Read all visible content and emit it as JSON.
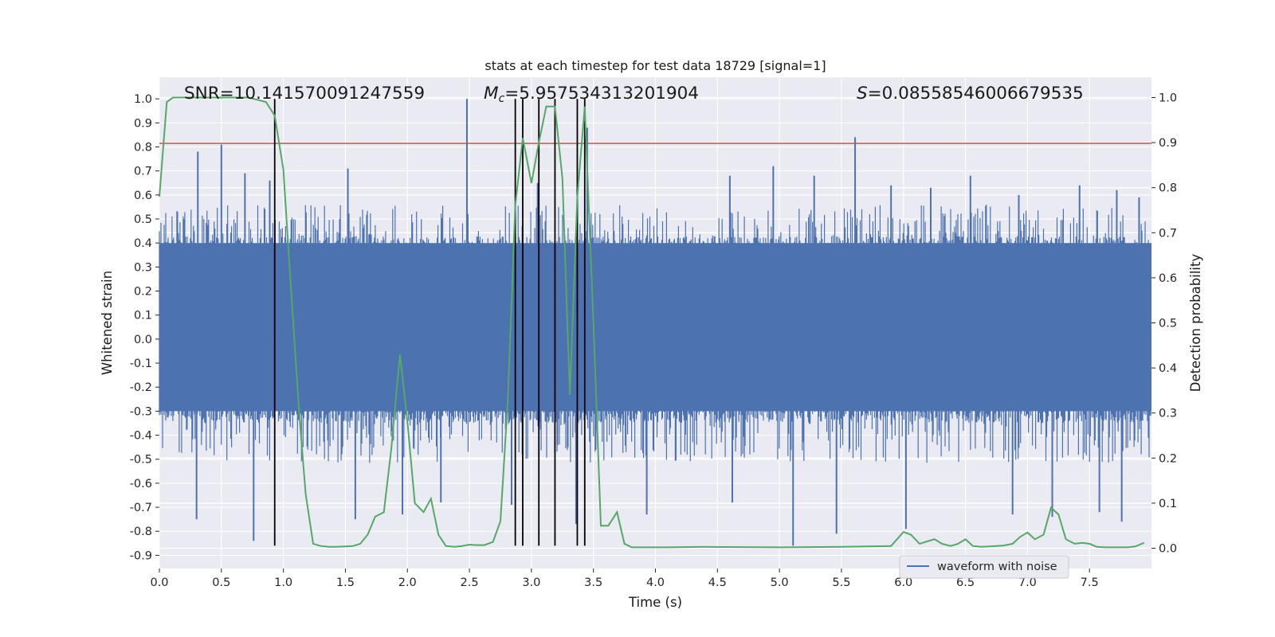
{
  "chart_data": {
    "type": "line",
    "title": "stats at each timestep for test data 18729 [signal=1]",
    "xlabel": "Time (s)",
    "ylabel": "Whitened strain",
    "y2label": "Detection probability",
    "xlim": [
      0.0,
      8.0
    ],
    "ylim": [
      -0.955,
      1.09
    ],
    "y2lim": [
      -0.045,
      1.045
    ],
    "xticks": [
      "0.0",
      "0.5",
      "1.0",
      "1.5",
      "2.0",
      "2.5",
      "3.0",
      "3.5",
      "4.0",
      "4.5",
      "5.0",
      "5.5",
      "6.0",
      "6.5",
      "7.0",
      "7.5"
    ],
    "xtick_values": [
      0,
      0.5,
      1,
      1.5,
      2,
      2.5,
      3,
      3.5,
      4,
      4.5,
      5,
      5.5,
      6,
      6.5,
      7,
      7.5
    ],
    "yticks": [
      "1.0",
      "0.9",
      "0.8",
      "0.7",
      "0.6",
      "0.5",
      "0.4",
      "0.3",
      "0.2",
      "0.1",
      "0.0",
      "-0.1",
      "-0.2",
      "-0.3",
      "-0.4",
      "-0.5",
      "-0.6",
      "-0.7",
      "-0.8",
      "-0.9"
    ],
    "ytick_values": [
      1.0,
      0.9,
      0.8,
      0.7,
      0.6,
      0.5,
      0.4,
      0.3,
      0.2,
      0.1,
      0.0,
      -0.1,
      -0.2,
      -0.3,
      -0.4,
      -0.5,
      -0.6,
      -0.7,
      -0.8,
      -0.9
    ],
    "y2ticks": [
      "1.0",
      "0.9",
      "0.8",
      "0.7",
      "0.6",
      "0.5",
      "0.4",
      "0.3",
      "0.2",
      "0.1",
      "0.0"
    ],
    "y2tick_values": [
      1.0,
      0.9,
      0.8,
      0.7,
      0.6,
      0.5,
      0.4,
      0.3,
      0.2,
      0.1,
      0.0
    ],
    "grid": true,
    "background": "#EAEAF2",
    "legend": {
      "label": "waveform with noise",
      "position": "lower-right"
    },
    "annotations": {
      "snr": "SNR=10.141570091247559",
      "mc_symbol": "M",
      "mc_sub": "c",
      "mc_value": "=5.957534313201904",
      "s_symbol": "S",
      "s_value": "=0.08558546006679535"
    },
    "threshold": {
      "value": 0.815,
      "color": "#C44E52"
    },
    "detection_markers": [
      0.93,
      2.87,
      2.93,
      3.06,
      3.19,
      3.37,
      3.43
    ],
    "marker_ylim": [
      -0.86,
      1.0
    ],
    "waveform": {
      "name": "waveform with noise",
      "color": "#4C72B0",
      "band": [
        -0.3,
        0.4
      ],
      "spikes_up": [
        [
          0.31,
          0.78
        ],
        [
          0.5,
          0.81
        ],
        [
          0.69,
          0.69
        ],
        [
          0.89,
          0.66
        ],
        [
          1.52,
          0.71
        ],
        [
          2.48,
          1.0
        ],
        [
          3.05,
          0.65
        ],
        [
          3.37,
          0.62
        ],
        [
          3.45,
          0.88
        ],
        [
          4.6,
          0.68
        ],
        [
          4.95,
          0.72
        ],
        [
          5.28,
          0.68
        ],
        [
          5.61,
          0.84
        ],
        [
          5.9,
          0.64
        ],
        [
          6.22,
          0.63
        ],
        [
          6.54,
          0.68
        ],
        [
          6.93,
          0.6
        ],
        [
          7.42,
          0.64
        ],
        [
          7.72,
          0.62
        ],
        [
          7.9,
          0.59
        ]
      ],
      "spikes_down": [
        [
          0.3,
          -0.75
        ],
        [
          0.76,
          -0.84
        ],
        [
          1.58,
          -0.75
        ],
        [
          1.96,
          -0.73
        ],
        [
          2.27,
          -0.68
        ],
        [
          2.84,
          -0.69
        ],
        [
          3.36,
          -0.77
        ],
        [
          3.93,
          -0.73
        ],
        [
          4.62,
          -0.68
        ],
        [
          5.11,
          -0.86
        ],
        [
          5.46,
          -0.81
        ],
        [
          6.02,
          -0.79
        ],
        [
          6.88,
          -0.73
        ],
        [
          7.2,
          -0.74
        ],
        [
          7.58,
          -0.72
        ],
        [
          7.76,
          -0.76
        ]
      ]
    },
    "detection": {
      "name": "Detection probability",
      "color": "#55A868",
      "x": [
        0.0,
        0.06,
        0.11,
        0.23,
        0.43,
        0.72,
        0.86,
        0.93,
        1.0,
        1.06,
        1.13,
        1.18,
        1.24,
        1.3,
        1.37,
        1.43,
        1.5,
        1.56,
        1.62,
        1.68,
        1.74,
        1.81,
        1.87,
        1.94,
        2.0,
        2.06,
        2.13,
        2.19,
        2.25,
        2.31,
        2.38,
        2.44,
        2.5,
        2.56,
        2.62,
        2.69,
        2.75,
        2.81,
        2.87,
        2.93,
        3.0,
        3.06,
        3.12,
        3.19,
        3.25,
        3.31,
        3.37,
        3.43,
        3.5,
        3.56,
        3.62,
        3.69,
        3.75,
        3.81,
        3.9,
        4.1,
        4.4,
        5.0,
        5.5,
        5.9,
        6.0,
        6.06,
        6.13,
        6.19,
        6.25,
        6.31,
        6.38,
        6.44,
        6.5,
        6.56,
        6.63,
        6.69,
        6.75,
        6.81,
        6.88,
        6.94,
        7.0,
        7.06,
        7.13,
        7.19,
        7.25,
        7.31,
        7.38,
        7.44,
        7.5,
        7.56,
        7.63,
        7.69,
        7.75,
        7.81,
        7.87,
        7.94
      ],
      "y": [
        0.78,
        0.99,
        1.0,
        1.0,
        1.0,
        1.0,
        0.99,
        0.96,
        0.84,
        0.58,
        0.29,
        0.12,
        0.01,
        0.005,
        0.003,
        0.003,
        0.004,
        0.005,
        0.01,
        0.03,
        0.07,
        0.08,
        0.22,
        0.43,
        0.28,
        0.1,
        0.08,
        0.11,
        0.03,
        0.005,
        0.003,
        0.005,
        0.008,
        0.007,
        0.007,
        0.014,
        0.06,
        0.33,
        0.76,
        0.91,
        0.81,
        0.9,
        0.98,
        0.98,
        0.82,
        0.34,
        0.78,
        0.98,
        0.5,
        0.05,
        0.05,
        0.08,
        0.01,
        0.002,
        0.002,
        0.002,
        0.003,
        0.002,
        0.003,
        0.005,
        0.036,
        0.03,
        0.01,
        0.015,
        0.02,
        0.01,
        0.005,
        0.01,
        0.02,
        0.005,
        0.003,
        0.004,
        0.005,
        0.006,
        0.01,
        0.025,
        0.035,
        0.02,
        0.03,
        0.09,
        0.075,
        0.02,
        0.01,
        0.012,
        0.01,
        0.003,
        0.002,
        0.002,
        0.002,
        0.002,
        0.004,
        0.012
      ]
    }
  }
}
